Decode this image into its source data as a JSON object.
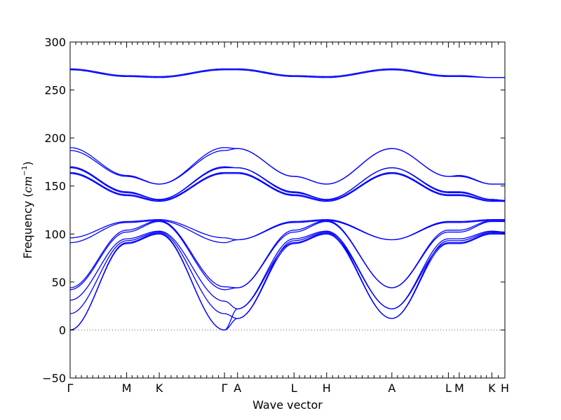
{
  "chart_data": {
    "type": "line",
    "title": "",
    "xlabel": "Wave vector",
    "ylabel": "Frequency (cm⁻¹)",
    "ylabel_text": "Frequency (",
    "ylabel_unit": "cm",
    "ylabel_exp": "−1",
    "ylabel_close": ")",
    "ylim": [
      -50,
      300
    ],
    "yticks": [
      -50,
      0,
      50,
      100,
      150,
      200,
      250,
      300
    ],
    "ytick_labels": [
      "−50",
      "0",
      "50",
      "100",
      "150",
      "200",
      "250",
      "300"
    ],
    "xlim": [
      0,
      100
    ],
    "high_symmetry_points": [
      {
        "label": "Γ",
        "x": 0
      },
      {
        "label": "M",
        "x": 13
      },
      {
        "label": "K",
        "x": 20.5
      },
      {
        "label": "Γ",
        "x": 35.5
      },
      {
        "label": "A",
        "x": 38.5
      },
      {
        "label": "L",
        "x": 51.5
      },
      {
        "label": "H",
        "x": 59
      },
      {
        "label": "A",
        "x": 74
      },
      {
        "label": "L",
        "x": 87
      },
      {
        "label": "M",
        "x": 89.5
      },
      {
        "label": "K",
        "x": 97
      },
      {
        "label": "H",
        "x": 100
      }
    ],
    "zero_line": true,
    "line_color": "#0000ff",
    "series": [
      {
        "x": [
          0,
          13,
          20.5,
          35.5,
          38.5,
          51.5,
          59,
          74,
          87,
          89.5,
          97,
          100
        ],
        "values": [
          272,
          265,
          264,
          272,
          272,
          265,
          264,
          272,
          265,
          265,
          263,
          263
        ]
      },
      {
        "x": [
          0,
          13,
          20.5,
          35.5,
          38.5,
          51.5,
          59,
          74,
          87,
          89.5,
          97,
          100
        ],
        "values": [
          271,
          264,
          263,
          271,
          271,
          264,
          263,
          271,
          264,
          264,
          263,
          263
        ]
      },
      {
        "x": [
          0,
          13,
          20.5,
          35.5,
          38.5,
          51.5,
          59,
          74,
          87,
          89.5,
          97,
          100
        ],
        "values": [
          190,
          161,
          152,
          190,
          189,
          160,
          152,
          189,
          160,
          161,
          152,
          152
        ]
      },
      {
        "x": [
          0,
          13,
          20.5,
          35.5,
          38.5,
          51.5,
          59,
          74,
          87,
          89.5,
          97,
          100
        ],
        "values": [
          187,
          160,
          152,
          187,
          189,
          160,
          152,
          189,
          160,
          160,
          152,
          152
        ]
      },
      {
        "x": [
          0,
          13,
          20.5,
          35.5,
          38.5,
          51.5,
          59,
          74,
          87,
          89.5,
          97,
          100
        ],
        "values": [
          170,
          144,
          136,
          170,
          169,
          144,
          136,
          169,
          144,
          144,
          136,
          135
        ]
      },
      {
        "x": [
          0,
          13,
          20.5,
          35.5,
          38.5,
          51.5,
          59,
          74,
          87,
          89.5,
          97,
          100
        ],
        "values": [
          169,
          143,
          136,
          169,
          169,
          143,
          136,
          169,
          143,
          143,
          136,
          135
        ]
      },
      {
        "x": [
          0,
          13,
          20.5,
          35.5,
          38.5,
          51.5,
          59,
          74,
          87,
          89.5,
          97,
          100
        ],
        "values": [
          164,
          141,
          135,
          164,
          164,
          141,
          135,
          164,
          141,
          141,
          135,
          134
        ]
      },
      {
        "x": [
          0,
          13,
          20.5,
          35.5,
          38.5,
          51.5,
          59,
          74,
          87,
          89.5,
          97,
          100
        ],
        "values": [
          163,
          140,
          134,
          163,
          163,
          140,
          134,
          163,
          140,
          140,
          134,
          134
        ]
      },
      {
        "x": [
          0,
          13,
          20.5,
          35.5,
          38.5,
          51.5,
          59,
          74,
          87,
          89.5,
          97,
          100
        ],
        "values": [
          96,
          113,
          115,
          96,
          94,
          113,
          115,
          94,
          113,
          113,
          115,
          115
        ]
      },
      {
        "x": [
          0,
          13,
          20.5,
          35.5,
          38.5,
          51.5,
          59,
          74,
          87,
          89.5,
          97,
          100
        ],
        "values": [
          91,
          112,
          114,
          91,
          94,
          112,
          114,
          94,
          112,
          112,
          114,
          114
        ]
      },
      {
        "x": [
          0,
          13,
          20.5,
          35.5,
          38.5,
          51.5,
          59,
          74,
          87,
          89.5,
          97,
          100
        ],
        "values": [
          44,
          104,
          114,
          45,
          44,
          104,
          114,
          44,
          104,
          104,
          114,
          114
        ]
      },
      {
        "x": [
          0,
          13,
          20.5,
          35.5,
          38.5,
          51.5,
          59,
          74,
          87,
          89.5,
          97,
          100
        ],
        "values": [
          42,
          102,
          113,
          42,
          44,
          102,
          113,
          44,
          102,
          102,
          113,
          113
        ]
      },
      {
        "x": [
          0,
          13,
          20.5,
          35.5,
          38.5,
          51.5,
          59,
          74,
          87,
          89.5,
          97,
          100
        ],
        "values": [
          31,
          95,
          103,
          30,
          22,
          95,
          103,
          22,
          95,
          95,
          103,
          102
        ]
      },
      {
        "x": [
          0,
          13,
          20.5,
          35.5,
          38.5,
          51.5,
          59,
          74,
          87,
          89.5,
          97,
          100
        ],
        "values": [
          17,
          93,
          102,
          17,
          12,
          93,
          102,
          12,
          93,
          93,
          102,
          102
        ]
      },
      {
        "x": [
          0,
          13,
          20.5,
          35.5,
          38.5,
          51.5,
          59,
          74,
          87,
          89.5,
          97,
          100
        ],
        "values": [
          0,
          91,
          101,
          0,
          22,
          91,
          101,
          22,
          91,
          91,
          101,
          101
        ]
      },
      {
        "x": [
          0,
          13,
          20.5,
          35.5,
          38.5,
          51.5,
          59,
          74,
          87,
          89.5,
          97,
          100
        ],
        "values": [
          0,
          90,
          100,
          0,
          12,
          90,
          100,
          12,
          90,
          90,
          100,
          100
        ]
      }
    ]
  }
}
